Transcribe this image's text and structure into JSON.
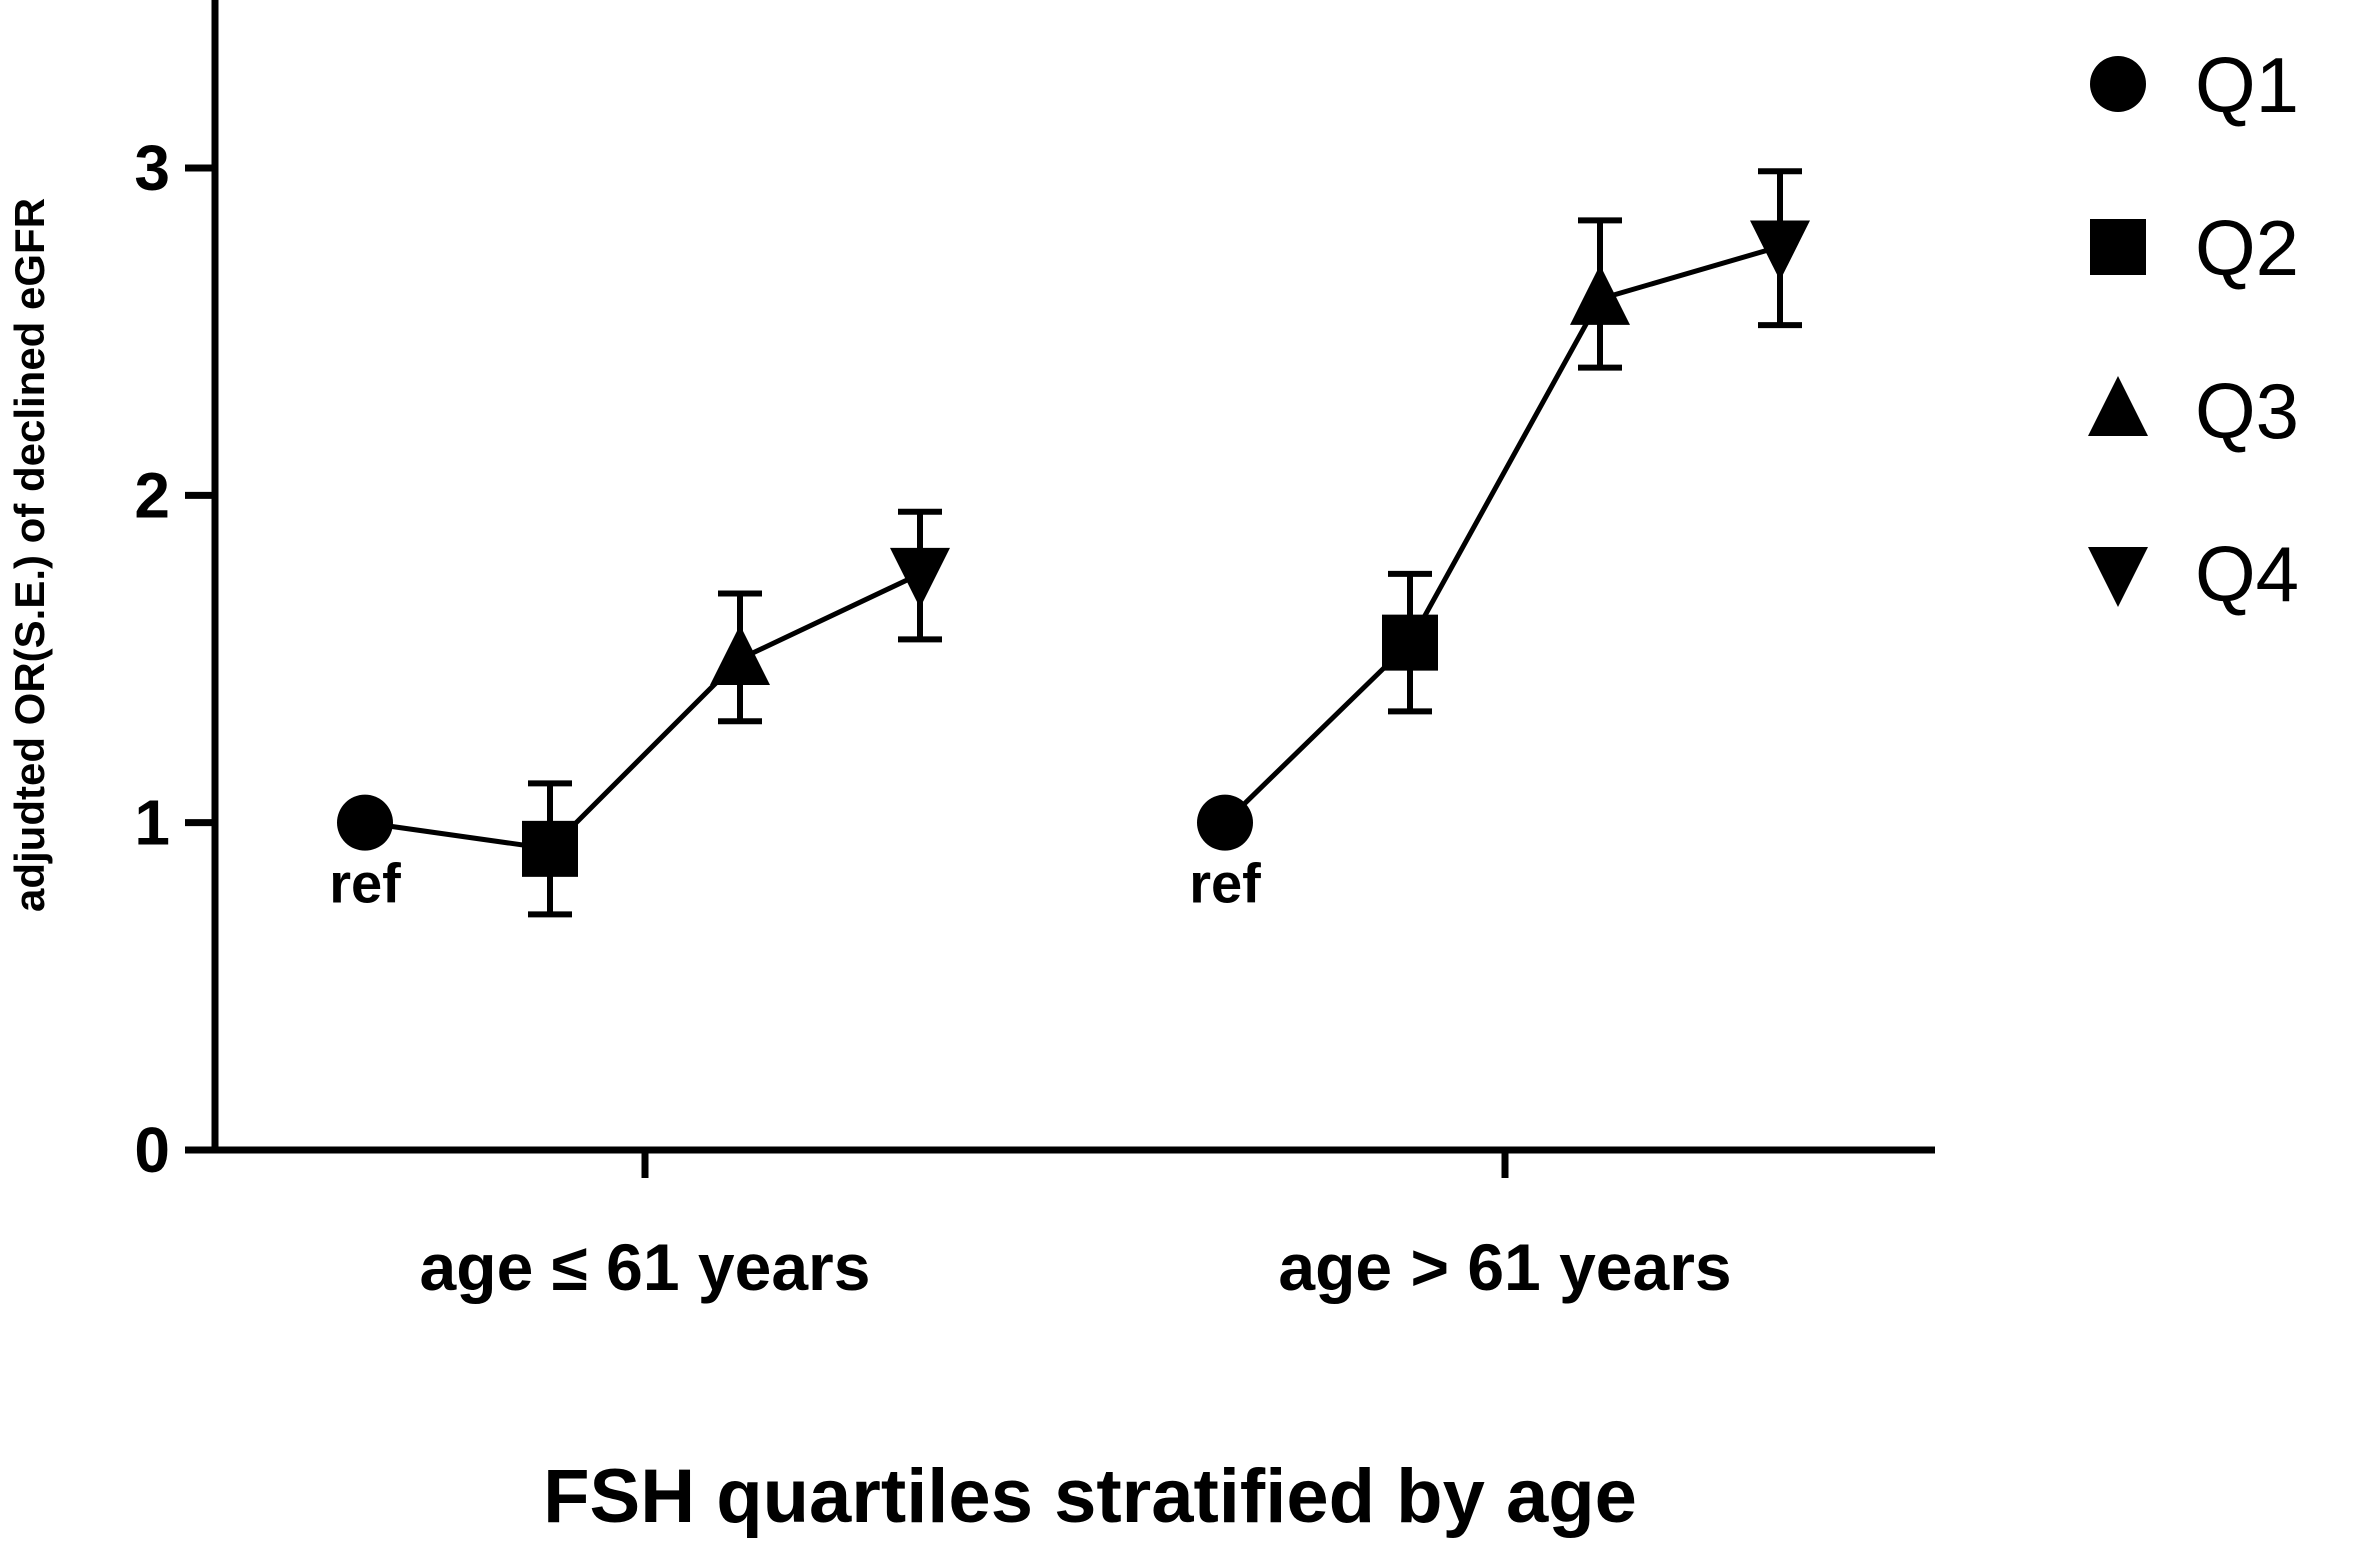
{
  "chart_data": {
    "type": "line",
    "xlabel": "FSH quartiles stratified by age",
    "ylabel": "adjudted OR(S.E.) of declined eGFR",
    "ylim": [
      0,
      3.5
    ],
    "yticks": [
      "0",
      "1",
      "2",
      "3"
    ],
    "groups": [
      {
        "label": "age ≤ 61 years",
        "ref_label": "ref",
        "points": [
          {
            "quartile": "Q1",
            "value": 1.0,
            "se_low": null,
            "se_high": null
          },
          {
            "quartile": "Q2",
            "value": 0.92,
            "se_low": 0.72,
            "se_high": 1.12
          },
          {
            "quartile": "Q3",
            "value": 1.5,
            "se_low": 1.31,
            "se_high": 1.7
          },
          {
            "quartile": "Q4",
            "value": 1.76,
            "se_low": 1.56,
            "se_high": 1.95
          }
        ]
      },
      {
        "label": "age > 61 years",
        "ref_label": "ref",
        "points": [
          {
            "quartile": "Q1",
            "value": 1.0,
            "se_low": null,
            "se_high": null
          },
          {
            "quartile": "Q2",
            "value": 1.55,
            "se_low": 1.34,
            "se_high": 1.76
          },
          {
            "quartile": "Q3",
            "value": 2.6,
            "se_low": 2.39,
            "se_high": 2.84
          },
          {
            "quartile": "Q4",
            "value": 2.76,
            "se_low": 2.52,
            "se_high": 2.99
          }
        ]
      }
    ],
    "legend": {
      "placement": "top-right",
      "entries": [
        {
          "label": "Q1",
          "marker": "circle"
        },
        {
          "label": "Q2",
          "marker": "square"
        },
        {
          "label": "Q3",
          "marker": "triangle-up"
        },
        {
          "label": "Q4",
          "marker": "triangle-down"
        }
      ]
    },
    "grid": false,
    "color": "#000000"
  }
}
